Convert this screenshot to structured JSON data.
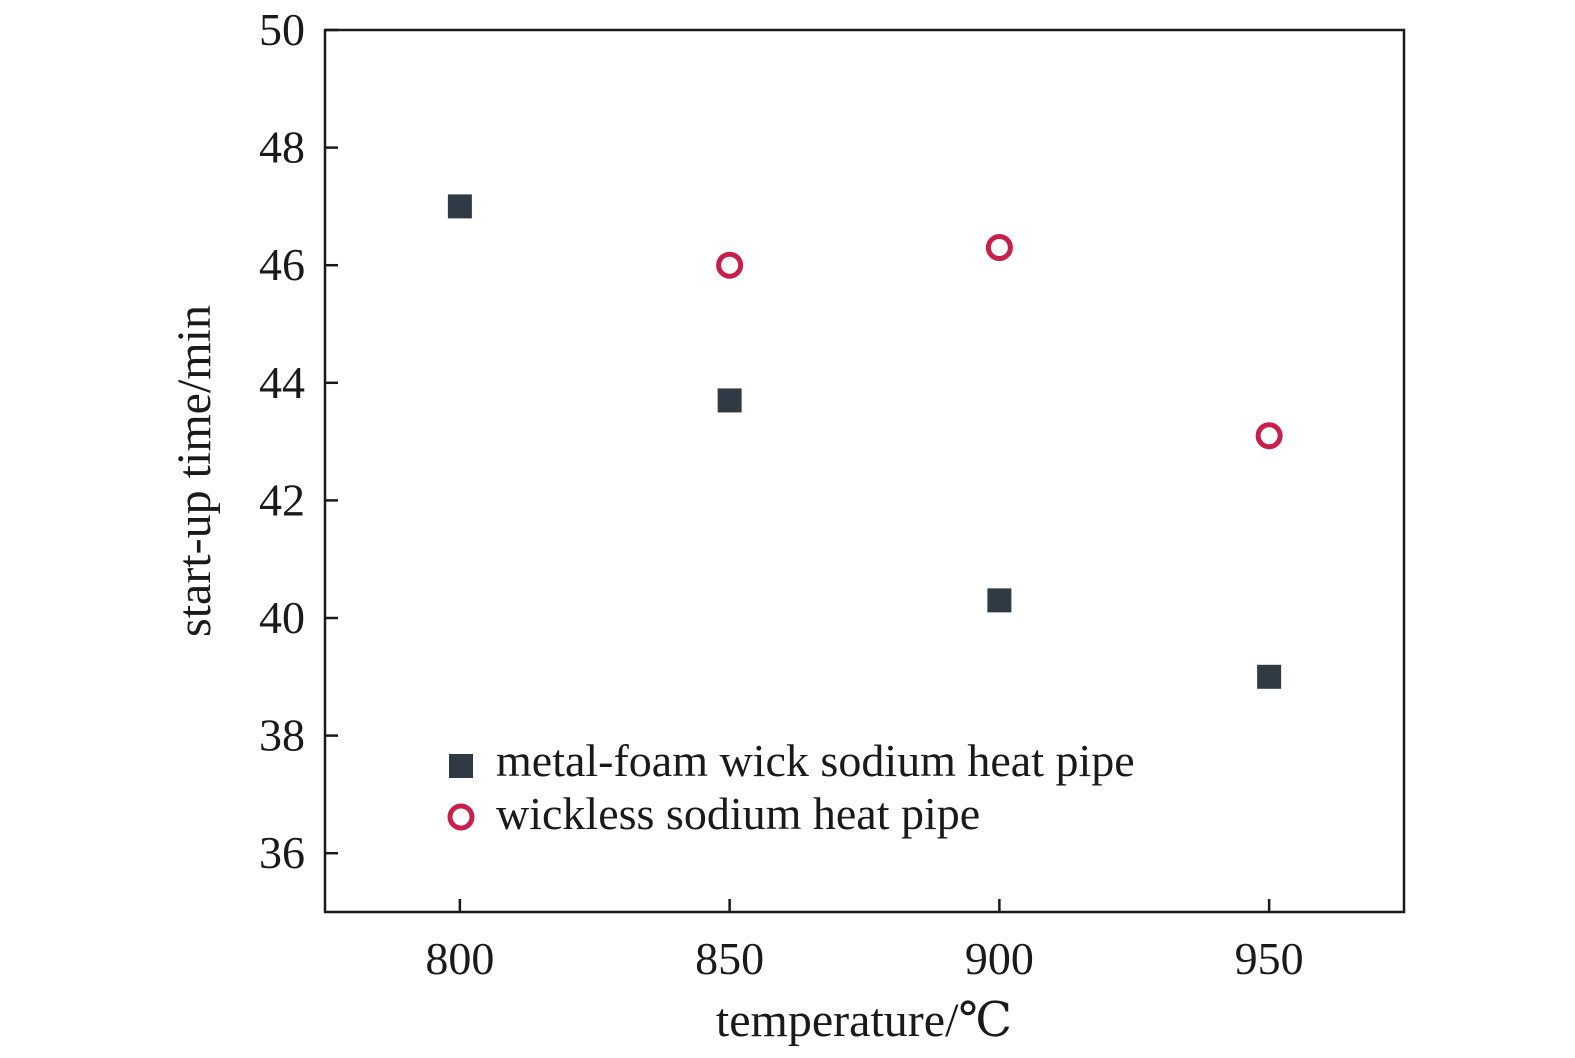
{
  "chart_data": {
    "type": "scatter",
    "xlabel": "temperature/℃",
    "ylabel": "start-up time/min",
    "xlim": [
      775,
      975
    ],
    "ylim": [
      35,
      50
    ],
    "xticks": [
      800,
      850,
      900,
      950
    ],
    "yticks": [
      36,
      38,
      40,
      42,
      44,
      46,
      48,
      50
    ],
    "grid": false,
    "legend_position": "bottom-left",
    "series": [
      {
        "name": "metal-foam wick sodium heat pipe",
        "marker": "filled-square",
        "color": "#2f3a44",
        "x": [
          800,
          850,
          900,
          950
        ],
        "y": [
          47.0,
          43.7,
          40.3,
          39.0
        ]
      },
      {
        "name": "wickless sodium heat pipe",
        "marker": "open-circle",
        "color": "#c8204a",
        "x": [
          850,
          900,
          950
        ],
        "y": [
          46.0,
          46.3,
          43.1
        ]
      }
    ]
  }
}
